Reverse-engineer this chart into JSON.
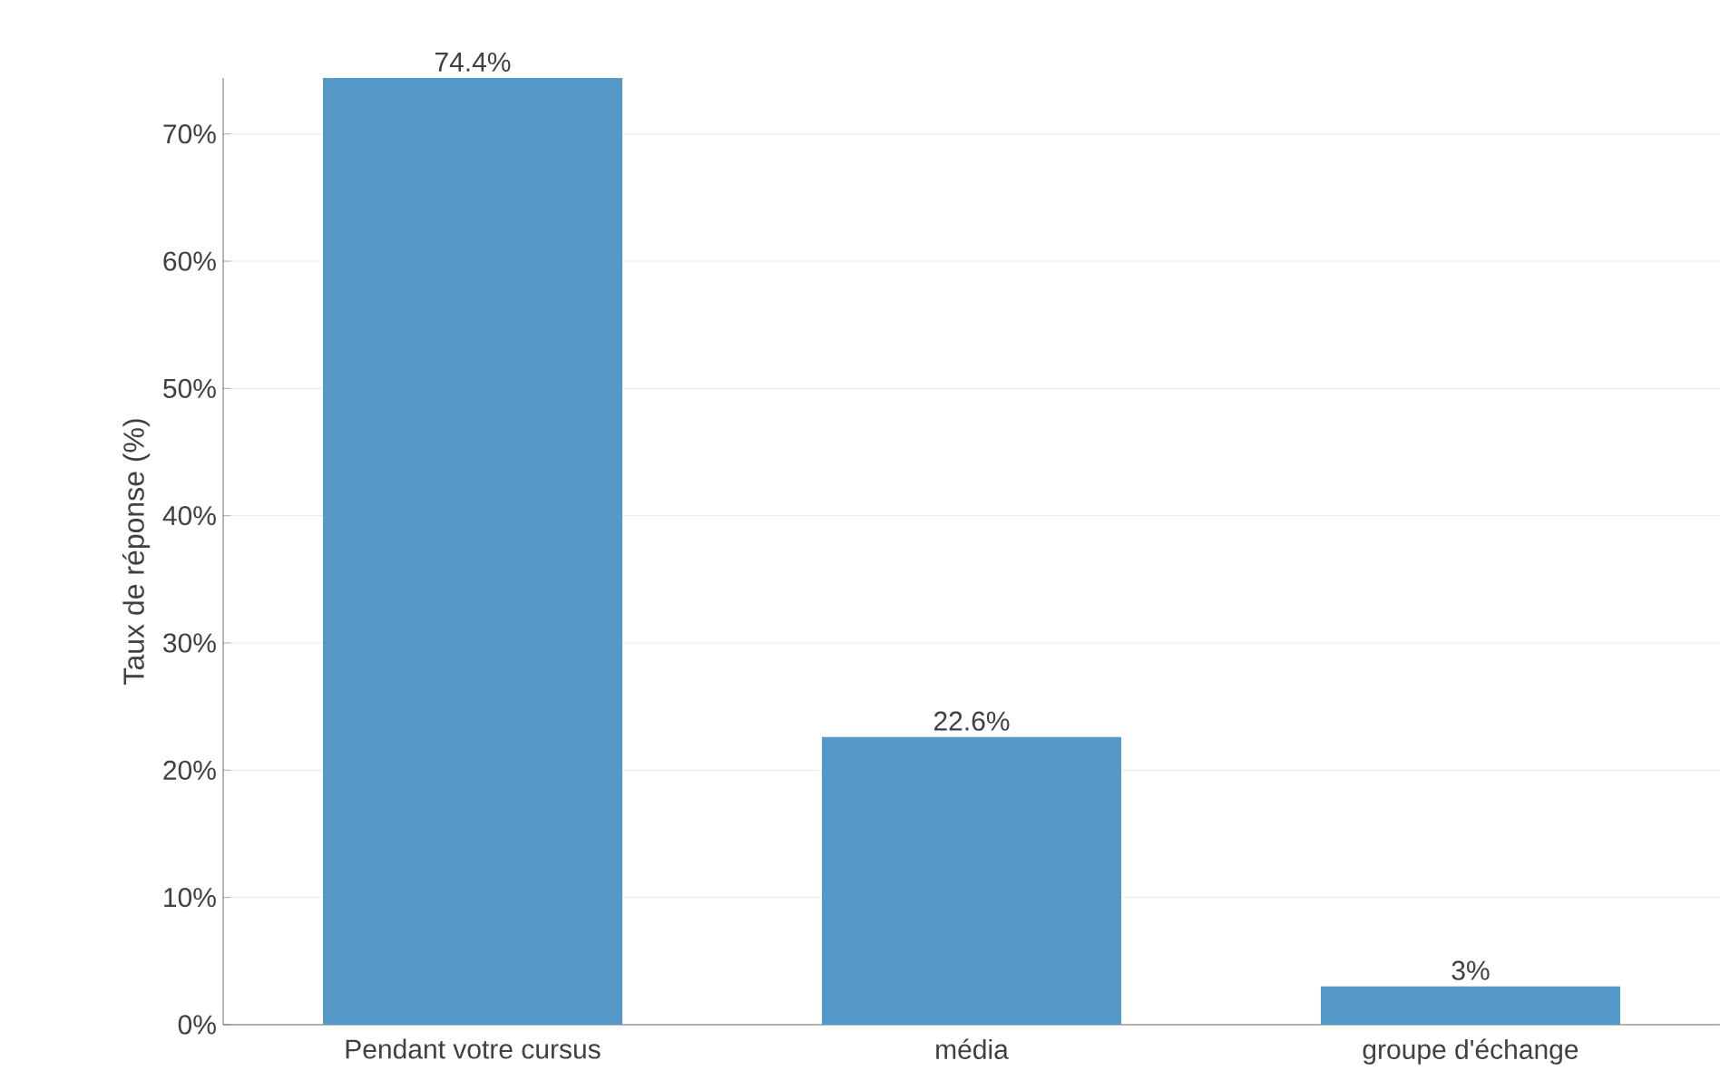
{
  "chart_data": {
    "type": "bar",
    "ylabel": "Taux de réponse (%)",
    "categories": [
      "Pendant votre cursus",
      "média",
      "groupe d'échange"
    ],
    "values": [
      74.4,
      22.6,
      3
    ],
    "value_labels": [
      "74.4%",
      "22.6%",
      "3%"
    ],
    "color": "#5499c7",
    "ylim": [
      0,
      74.4
    ],
    "yticks": [
      {
        "value": 0,
        "label": "0%"
      },
      {
        "value": 10,
        "label": "10%"
      },
      {
        "value": 20,
        "label": "20%"
      },
      {
        "value": 30,
        "label": "30%"
      },
      {
        "value": 40,
        "label": "40%"
      },
      {
        "value": 50,
        "label": "50%"
      },
      {
        "value": 60,
        "label": "60%"
      },
      {
        "value": 70,
        "label": "70%"
      }
    ],
    "grid": "y"
  }
}
